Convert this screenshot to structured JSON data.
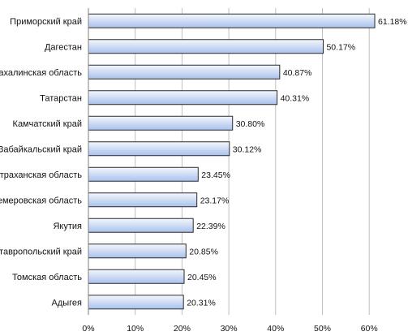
{
  "chart_data": {
    "type": "bar",
    "orientation": "horizontal",
    "categories": [
      "Приморский край",
      "Дагестан",
      "Сахалинская область",
      "Татарстан",
      "Камчатский край",
      "Забайкальский край",
      "Астраханская область",
      "Кемеровская область",
      "Якутия",
      "Ставропольский край",
      "Томская область",
      "Адыгея"
    ],
    "values": [
      61.18,
      50.17,
      40.87,
      40.31,
      30.8,
      30.12,
      23.45,
      23.17,
      22.39,
      20.85,
      20.45,
      20.31
    ],
    "value_labels": [
      "61.18%",
      "50.17%",
      "40.87%",
      "40.31%",
      "30.80%",
      "30.12%",
      "23.45%",
      "23.17%",
      "22.39%",
      "20.85%",
      "20.45%",
      "20.31%"
    ],
    "xlim": [
      0,
      60
    ],
    "xticks": [
      "0%",
      "10%",
      "20%",
      "30%",
      "40%",
      "50%",
      "60%"
    ],
    "grid": true,
    "legend": "none",
    "title": "",
    "xlabel": "",
    "ylabel": "",
    "colors": {
      "bar_fill_light": "#f4f7fd",
      "bar_fill_dark": "#a9c1ec",
      "bar_stroke": "#2a2a2a",
      "grid": "#bfbfbf",
      "axis": "#7f7f7f"
    }
  }
}
